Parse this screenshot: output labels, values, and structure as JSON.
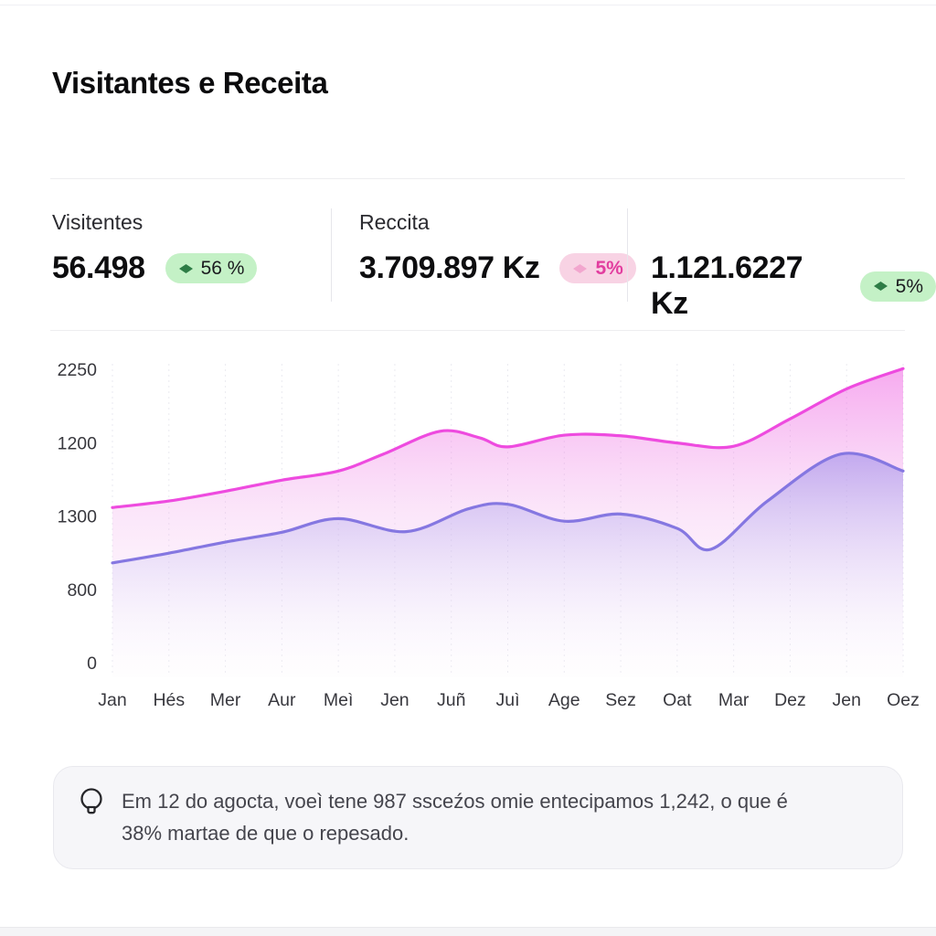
{
  "page": {
    "title": "Visitantes e Receita"
  },
  "stats": [
    {
      "label": "Visitentes",
      "value": "56.498",
      "badge": {
        "text": "56 %",
        "type": "green"
      }
    },
    {
      "label": "Reccita",
      "value": "3.709.897 Kz",
      "badge": {
        "text": "5%",
        "type": "pink"
      }
    },
    {
      "label": "",
      "value": "1.121.6227 Kz",
      "badge": {
        "text": "5%",
        "type": "green"
      }
    }
  ],
  "chart_data": {
    "type": "area",
    "title": "Visitantes e Receita",
    "categories": [
      "Jan",
      "Hés",
      "Mer",
      "Aur",
      "Meì",
      "Jen",
      "Juñ",
      "Juì",
      "Age",
      "Sez",
      "Oat",
      "Mar",
      "Dez",
      "Jen",
      "Oez"
    ],
    "y_tick_labels_top_to_bottom": [
      "2250",
      "1200",
      "1300",
      "800",
      "0"
    ],
    "value_axis_max": 2250,
    "grid": "vertical-dashed",
    "legend": "none",
    "series": [
      {
        "name": "receita",
        "color": "#ee4bdf",
        "gradient": "gpink",
        "values": [
          1190,
          1240,
          1315,
          1400,
          1470,
          1630,
          1770,
          1655,
          1745,
          1740,
          1685,
          1660,
          1870,
          2100,
          2255
        ],
        "shape_points": [
          [
            0,
            1190
          ],
          [
            1,
            1240
          ],
          [
            2,
            1315
          ],
          [
            3,
            1400
          ],
          [
            4,
            1470
          ],
          [
            4.8,
            1600
          ],
          [
            5.8,
            1775
          ],
          [
            6.5,
            1725
          ],
          [
            7,
            1655
          ],
          [
            8,
            1745
          ],
          [
            9,
            1740
          ],
          [
            10,
            1685
          ],
          [
            11,
            1660
          ],
          [
            12,
            1870
          ],
          [
            13,
            2100
          ],
          [
            14,
            2255
          ]
        ]
      },
      {
        "name": "visitantes",
        "color": "#8577e1",
        "gradient": "gpurple",
        "values": [
          765,
          840,
          925,
          1000,
          1105,
          1010,
          1175,
          1215,
          1085,
          1140,
          1030,
          1060,
          1365,
          1590,
          1470
        ],
        "shape_points": [
          [
            0,
            765
          ],
          [
            1,
            840
          ],
          [
            2,
            925
          ],
          [
            3,
            1000
          ],
          [
            4,
            1105
          ],
          [
            5.2,
            1005
          ],
          [
            6.3,
            1180
          ],
          [
            7,
            1215
          ],
          [
            8,
            1085
          ],
          [
            9,
            1140
          ],
          [
            10,
            1030
          ],
          [
            10.6,
            870
          ],
          [
            11.6,
            1240
          ],
          [
            12.9,
            1600
          ],
          [
            14,
            1470
          ]
        ]
      }
    ],
    "axis_text_color": "#38383e"
  },
  "insight": {
    "lines": [
      "Em 12 do agocta, voeì tene 987 ssceźos omie entecipamos 1,242, o que é",
      "38% martae de que o repesado."
    ]
  }
}
